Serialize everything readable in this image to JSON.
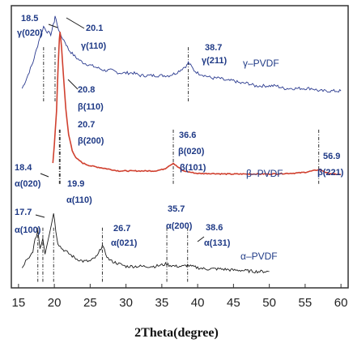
{
  "chart_data": {
    "type": "line",
    "title": "",
    "xlabel": "2Theta(degree)",
    "ylabel": "",
    "xlim": [
      14,
      61
    ],
    "x_ticks": [
      15,
      20,
      25,
      30,
      35,
      40,
      45,
      50,
      55,
      60
    ],
    "grid": false,
    "colors": {
      "gamma": "#2a3a8f",
      "beta": "#d0402f",
      "alpha": "#1a1a1a",
      "annotation": "#1f3a86",
      "frame": "#333333"
    },
    "series": [
      {
        "name": "γ–PVDF",
        "offset": 0.7,
        "x": [
          15.5,
          16,
          17,
          17.5,
          18,
          18.5,
          19,
          19.5,
          20,
          20.1,
          20.4,
          20.8,
          21.5,
          22,
          23,
          24,
          25,
          26,
          27,
          28,
          29,
          30,
          31,
          32,
          33,
          34,
          35,
          36,
          37,
          37.5,
          38,
          38.5,
          38.7,
          39,
          39.5,
          40,
          41,
          42,
          43,
          44,
          45,
          46,
          47,
          48,
          49,
          50,
          51,
          52,
          53,
          54,
          55,
          56,
          57,
          58,
          59,
          60
        ],
        "values": [
          0.02,
          0.05,
          0.12,
          0.17,
          0.22,
          0.26,
          0.24,
          0.23,
          0.28,
          0.3,
          0.27,
          0.23,
          0.2,
          0.17,
          0.14,
          0.12,
          0.11,
          0.1,
          0.09,
          0.09,
          0.08,
          0.08,
          0.08,
          0.07,
          0.07,
          0.07,
          0.07,
          0.07,
          0.08,
          0.09,
          0.1,
          0.11,
          0.12,
          0.11,
          0.09,
          0.08,
          0.07,
          0.06,
          0.06,
          0.05,
          0.05,
          0.04,
          0.04,
          0.03,
          0.03,
          0.03,
          0.03,
          0.02,
          0.02,
          0.02,
          0.02,
          0.02,
          0.01,
          0.01,
          0.01,
          0.01
        ]
      },
      {
        "name": "β–PVDF",
        "offset": 0.38,
        "x": [
          19.8,
          20,
          20.3,
          20.5,
          20.7,
          20.8,
          21,
          21.3,
          21.6,
          22,
          22.5,
          23,
          24,
          25,
          26,
          27,
          28,
          29,
          30,
          31,
          32,
          33,
          34,
          35,
          35.5,
          36,
          36.6,
          37,
          37.5,
          38,
          39,
          40,
          42,
          44,
          46,
          48,
          50,
          52,
          54,
          55,
          56,
          56.9,
          57.5,
          58,
          59,
          60
        ],
        "values": [
          0.05,
          0.12,
          0.25,
          0.4,
          0.53,
          0.56,
          0.5,
          0.38,
          0.26,
          0.16,
          0.1,
          0.07,
          0.05,
          0.04,
          0.035,
          0.03,
          0.025,
          0.02,
          0.02,
          0.02,
          0.02,
          0.02,
          0.02,
          0.025,
          0.03,
          0.04,
          0.05,
          0.04,
          0.03,
          0.02,
          0.015,
          0.01,
          0.01,
          0.008,
          0.008,
          0.008,
          0.008,
          0.01,
          0.012,
          0.015,
          0.02,
          0.025,
          0.02,
          0.012,
          0.008,
          0.006
        ]
      },
      {
        "name": "α–PVDF",
        "offset": 0.0,
        "x": [
          15.5,
          16,
          16.5,
          17,
          17.3,
          17.7,
          18,
          18.4,
          18.7,
          19,
          19.5,
          19.9,
          20.2,
          20.5,
          21,
          21.5,
          22,
          23,
          24,
          25,
          26,
          26.5,
          26.7,
          27,
          27.5,
          28,
          29,
          30,
          31,
          32,
          33,
          34,
          35,
          35.7,
          36,
          37,
          38,
          38.6,
          39,
          40,
          41,
          42,
          43,
          44,
          45,
          46,
          47,
          48,
          49,
          50
        ],
        "values": [
          0.02,
          0.05,
          0.06,
          0.09,
          0.13,
          0.17,
          0.1,
          0.14,
          0.08,
          0.12,
          0.18,
          0.24,
          0.17,
          0.12,
          0.1,
          0.09,
          0.08,
          0.06,
          0.05,
          0.05,
          0.07,
          0.1,
          0.11,
          0.09,
          0.06,
          0.05,
          0.04,
          0.03,
          0.03,
          0.03,
          0.03,
          0.03,
          0.035,
          0.04,
          0.035,
          0.03,
          0.03,
          0.035,
          0.03,
          0.025,
          0.02,
          0.02,
          0.02,
          0.018,
          0.015,
          0.015,
          0.012,
          0.01,
          0.01,
          0.01
        ]
      }
    ],
    "peaks": [
      {
        "series": "γ–PVDF",
        "x": 18.5,
        "labels": [
          "18.5",
          "γ(020)"
        ]
      },
      {
        "series": "γ–PVDF",
        "x": 20.1,
        "labels": [
          "20.1",
          "γ(110)"
        ]
      },
      {
        "series": "γ–PVDF",
        "x": 38.7,
        "labels": [
          "38.7",
          "γ(211)"
        ]
      },
      {
        "series": "β–PVDF",
        "x": 20.8,
        "labels": [
          "20.8",
          "β(110)"
        ]
      },
      {
        "series": "β–PVDF",
        "x": 20.7,
        "labels": [
          "20.7",
          "β(200)"
        ]
      },
      {
        "series": "β–PVDF",
        "x": 36.6,
        "labels": [
          "36.6",
          "β(020)",
          "β(101)"
        ]
      },
      {
        "series": "β–PVDF",
        "x": 56.9,
        "labels": [
          "56.9",
          "β(221)"
        ]
      },
      {
        "series": "α–PVDF",
        "x": 18.4,
        "labels": [
          "18.4",
          "α(020)"
        ]
      },
      {
        "series": "α–PVDF",
        "x": 19.9,
        "labels": [
          "19.9",
          "α(110)"
        ]
      },
      {
        "series": "α–PVDF",
        "x": 17.7,
        "labels": [
          "17.7",
          "α(100)"
        ]
      },
      {
        "series": "α–PVDF",
        "x": 26.7,
        "labels": [
          "26.7",
          "α(021)"
        ]
      },
      {
        "series": "α–PVDF",
        "x": 35.7,
        "labels": [
          "35.7",
          "α(200)"
        ]
      },
      {
        "series": "α–PVDF",
        "x": 38.6,
        "labels": [
          "38.6",
          "α(131)"
        ]
      }
    ]
  }
}
